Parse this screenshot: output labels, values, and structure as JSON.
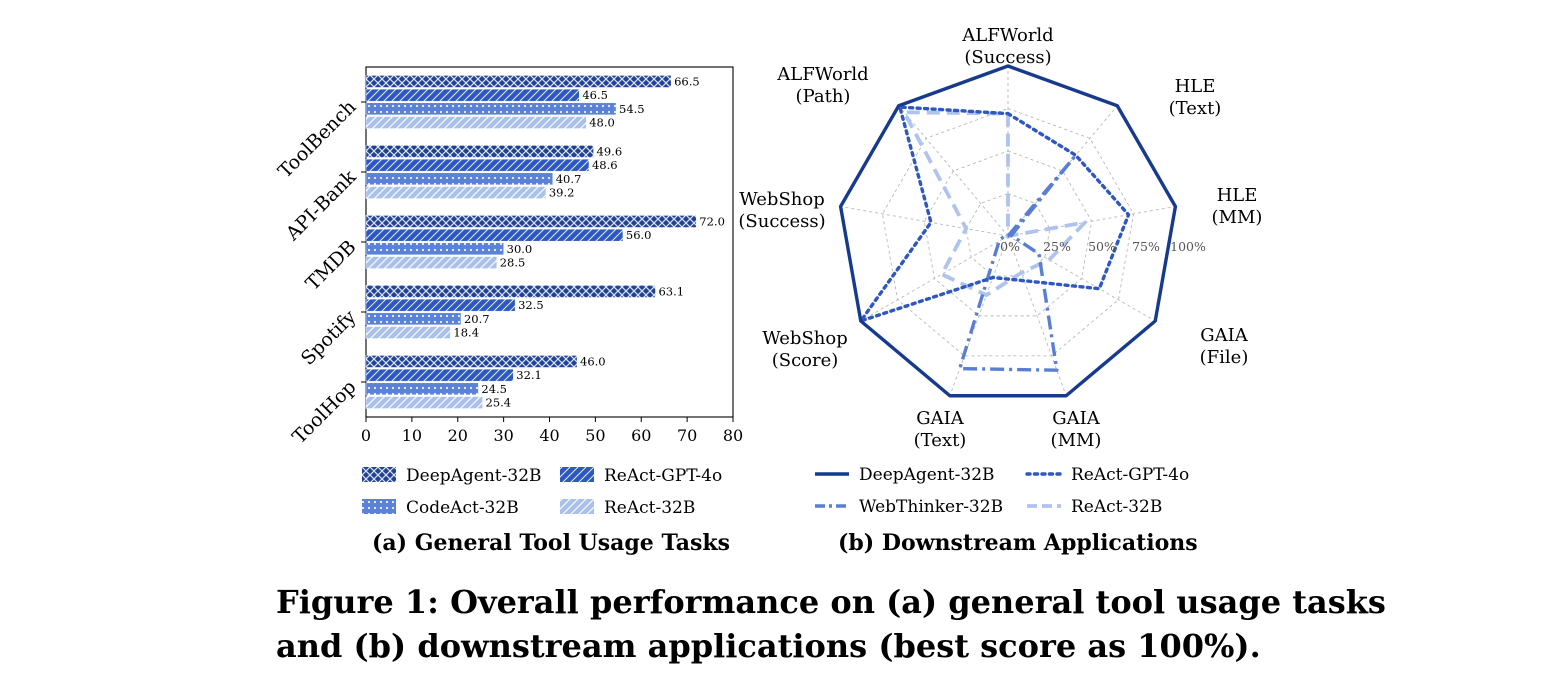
{
  "chart_data": [
    {
      "type": "bar",
      "orientation": "horizontal",
      "categories": [
        "ToolBench",
        "API-Bank",
        "TMDB",
        "Spotify",
        "ToolHop"
      ],
      "series": [
        {
          "name": "DeepAgent-32B",
          "values": [
            66.5,
            49.6,
            72.0,
            63.1,
            46.0
          ],
          "labels": [
            "66.5",
            "49.6",
            "72.0",
            "63.1",
            "46.0"
          ],
          "color": "#1f4196",
          "pattern": "crosshatch"
        },
        {
          "name": "ReAct-GPT-4o",
          "values": [
            46.5,
            48.6,
            56.0,
            32.5,
            32.1
          ],
          "labels": [
            "46.5",
            "48.6",
            "56.0",
            "32.5",
            "32.1"
          ],
          "color": "#2b58c4",
          "pattern": "diagonal"
        },
        {
          "name": "CodeAct-32B",
          "values": [
            54.5,
            40.7,
            30.0,
            20.7,
            24.5
          ],
          "labels": [
            "54.5",
            "40.7",
            "30.0",
            "20.7",
            "24.5"
          ],
          "color": "#5b82d6",
          "pattern": "dots"
        },
        {
          "name": "ReAct-32B",
          "values": [
            48.0,
            39.2,
            28.5,
            18.4,
            25.4
          ],
          "labels": [
            "48.0",
            "39.2",
            "28.5",
            "18.4",
            "25.4"
          ],
          "color": "#a9c0ee",
          "pattern": "light-diagonal"
        }
      ],
      "xlim": [
        0,
        80
      ],
      "xticks": [
        "0",
        "10",
        "20",
        "30",
        "40",
        "50",
        "60",
        "70",
        "80"
      ],
      "legend_placement": "below",
      "subcaption": "(a) General Tool Usage Tasks"
    },
    {
      "type": "radar",
      "axes": [
        {
          "label": [
            "ALFWorld",
            "(Success)"
          ]
        },
        {
          "label": [
            "HLE",
            "(Text)"
          ]
        },
        {
          "label": [
            "HLE",
            "(MM)"
          ]
        },
        {
          "label": [
            "GAIA",
            "(File)"
          ]
        },
        {
          "label": [
            "GAIA",
            "(MM)"
          ]
        },
        {
          "label": [
            "GAIA",
            "(Text)"
          ]
        },
        {
          "label": [
            "WebShop",
            "(Score)"
          ]
        },
        {
          "label": [
            "WebShop",
            "(Success)"
          ]
        },
        {
          "label": [
            "ALFWorld",
            "(Path)"
          ]
        }
      ],
      "rlim": [
        0,
        1
      ],
      "rticks": [
        0,
        0.25,
        0.5,
        0.75,
        1.0
      ],
      "rtick_labels": [
        "0%",
        "25%",
        "50%",
        "75%",
        "100%"
      ],
      "series": [
        {
          "name": "DeepAgent-32B",
          "values": [
            1.0,
            1.0,
            1.0,
            1.0,
            1.0,
            1.0,
            1.0,
            1.0,
            1.0
          ],
          "color": "#163a8c",
          "style": "solid"
        },
        {
          "name": "ReAct-GPT-4o",
          "values": [
            0.72,
            0.62,
            0.72,
            0.62,
            0.28,
            0.26,
            1.0,
            0.46,
            0.99
          ],
          "color": "#2f57c0",
          "style": "dotted"
        },
        {
          "name": "WebThinker-32B",
          "values": [
            0.0,
            0.6,
            0.02,
            0.21,
            0.84,
            0.83,
            0.06,
            0.02,
            0.0
          ],
          "color": "#5a7fd2",
          "style": "dashdot"
        },
        {
          "name": "ReAct-32B",
          "values": [
            0.72,
            0.0,
            0.46,
            0.28,
            0.23,
            0.37,
            0.45,
            0.25,
            0.95
          ],
          "color": "#aec3ee",
          "style": "dashed"
        }
      ],
      "legend_placement": "below",
      "subcaption": "(b) Downstream Applications"
    }
  ],
  "caption": {
    "line1": "Figure 1: Overall performance on (a) general tool usage tasks",
    "line2": "and (b) downstream applications (best score as 100%)."
  }
}
